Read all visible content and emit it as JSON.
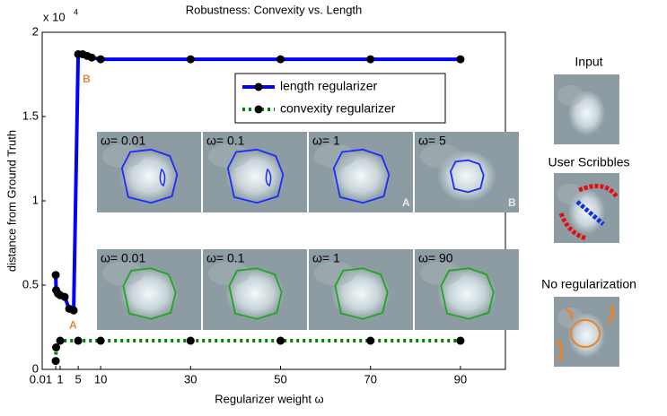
{
  "chart_data": {
    "type": "line",
    "title": "Robustness: Convexity vs. Length",
    "xlabel": "Regularizer weight ω",
    "ylabel": "distance from Ground Truth",
    "y_scale_label": "x 10",
    "y_scale_exponent": "4",
    "xlim": [
      -3,
      100
    ],
    "xticks": [
      0.01,
      1,
      5,
      10,
      30,
      50,
      70,
      90
    ],
    "ylim": [
      0,
      20000
    ],
    "yticks": [
      {
        "value": 0,
        "label": "0"
      },
      {
        "value": 5000,
        "label": "0.5"
      },
      {
        "value": 10000,
        "label": "1"
      },
      {
        "value": 15000,
        "label": "1.5"
      },
      {
        "value": 20000,
        "label": "2"
      }
    ],
    "legend": "upper right",
    "series": [
      {
        "name": "length regularizer",
        "color": "#0000ff",
        "linestyle": "solid",
        "x": [
          0.01,
          0.1,
          0.5,
          1,
          2,
          3,
          4,
          5,
          6,
          7,
          8,
          10,
          30,
          50,
          70,
          90
        ],
        "values": [
          5600,
          4700,
          4500,
          4400,
          4300,
          3600,
          3500,
          18700,
          18700,
          18600,
          18500,
          18400,
          18400,
          18400,
          18400,
          18400
        ]
      },
      {
        "name": "convexity regularizer",
        "color": "#008000",
        "linestyle": "dotted",
        "x": [
          0.01,
          0.1,
          1,
          5,
          10,
          30,
          50,
          70,
          90
        ],
        "values": [
          500,
          1300,
          1700,
          1700,
          1700,
          1700,
          1700,
          1700,
          1700
        ]
      }
    ],
    "annotations": [
      {
        "text": "A",
        "x": 3,
        "y": 2600
      },
      {
        "text": "B",
        "x": 6,
        "y": 17200
      }
    ],
    "insets": {
      "length_row": [
        "ω= 0.01",
        "ω= 0.1",
        "ω= 1",
        "ω= 5"
      ],
      "length_corner_labels": [
        null,
        null,
        "A",
        "B"
      ],
      "convexity_row": [
        "ω= 0.01",
        "ω= 0.1",
        "ω= 1",
        "ω= 90"
      ]
    },
    "side_panels": [
      "Input",
      "User Scribbles",
      "No regularization"
    ]
  }
}
